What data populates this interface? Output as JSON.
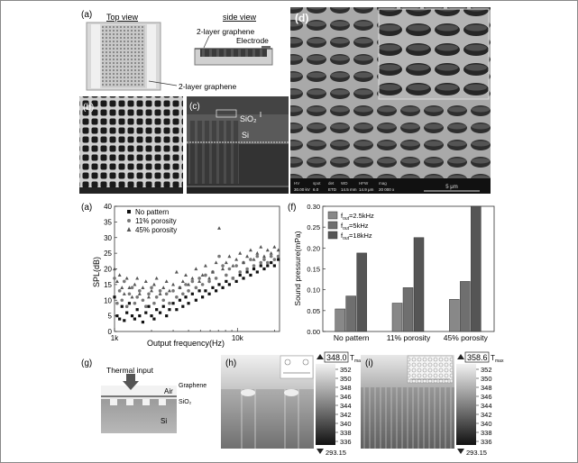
{
  "panel_labels": {
    "a_top": "(a)",
    "b": "(b)",
    "c": "(c)",
    "d": "(d)",
    "a_bottom": "(a)",
    "f": "(f)",
    "g": "(g)",
    "h": "(h)",
    "i": "(i)"
  },
  "panel_a_top": {
    "top_view_title": "Top view",
    "side_view_title": "side view",
    "label_graphene_side": "2-layer graphene",
    "label_electrode": "Electrode",
    "label_graphene_top": "2-layer graphene"
  },
  "panel_c": {
    "label_sio2": "SiO₂",
    "label_si": "Si"
  },
  "panel_d": {
    "footer_headers": [
      "HV",
      "spot",
      "det",
      "WD",
      "HFW",
      "mag"
    ],
    "footer_values": [
      "30.00 kV",
      "6.0",
      "ETD",
      "14.5 mm",
      "14.9 μm",
      "20 000 x"
    ],
    "scale_label": "5 μm"
  },
  "panel_g": {
    "label_input": "Thermal input",
    "label_graphene": "Graphene",
    "label_air": "Air",
    "label_sio2": "SiO₂",
    "label_si": "Si"
  },
  "panel_h": {
    "max_value": "348.0",
    "tmax_label": "T",
    "colorbar_ticks": [
      "352",
      "350",
      "348",
      "346",
      "344",
      "342",
      "340",
      "338",
      "336"
    ],
    "min_value": "293.15"
  },
  "panel_i": {
    "max_value": "358.6",
    "tmax_label": "T",
    "colorbar_ticks": [
      "352",
      "350",
      "348",
      "346",
      "344",
      "342",
      "340",
      "338",
      "336"
    ],
    "min_value": "293.15"
  },
  "chart_data": [
    {
      "type": "scatter",
      "title": "",
      "xlabel": "Output frequency(Hz)",
      "ylabel": "SPL(dB)",
      "xscale": "log",
      "xlim": [
        1000,
        22000
      ],
      "ylim": [
        0,
        40
      ],
      "yticks": [
        0,
        5,
        10,
        15,
        20,
        25,
        30,
        35,
        40
      ],
      "xtick_labels": [
        "1k",
        "10k"
      ],
      "legend_position": "top-left",
      "series": [
        {
          "name": "No pattern",
          "marker": "square",
          "points": [
            [
              1000,
              11
            ],
            [
              1050,
              5
            ],
            [
              1100,
              4
            ],
            [
              1150,
              8
            ],
            [
              1200,
              3.5
            ],
            [
              1260,
              6
            ],
            [
              1320,
              9
            ],
            [
              1390,
              5
            ],
            [
              1460,
              4
            ],
            [
              1530,
              7
            ],
            [
              1600,
              5
            ],
            [
              1700,
              3
            ],
            [
              1800,
              6
            ],
            [
              1900,
              8
            ],
            [
              2000,
              5
            ],
            [
              2100,
              4
            ],
            [
              2200,
              7
            ],
            [
              2350,
              6
            ],
            [
              2500,
              8
            ],
            [
              2650,
              5
            ],
            [
              2800,
              7
            ],
            [
              3000,
              9
            ],
            [
              3200,
              7
            ],
            [
              3400,
              10
            ],
            [
              3600,
              8
            ],
            [
              3800,
              11
            ],
            [
              4000,
              9
            ],
            [
              4300,
              12
            ],
            [
              4600,
              10
            ],
            [
              4900,
              13
            ],
            [
              5200,
              11
            ],
            [
              5500,
              13
            ],
            [
              5900,
              12
            ],
            [
              6300,
              14
            ],
            [
              6700,
              13
            ],
            [
              7100,
              15
            ],
            [
              7600,
              14
            ],
            [
              8100,
              16
            ],
            [
              8600,
              15
            ],
            [
              9200,
              17
            ],
            [
              9800,
              16
            ],
            [
              10500,
              18
            ],
            [
              11200,
              17
            ],
            [
              12000,
              19
            ],
            [
              12800,
              18
            ],
            [
              13600,
              20
            ],
            [
              14500,
              19
            ],
            [
              15500,
              21
            ],
            [
              16500,
              20
            ],
            [
              17600,
              21
            ],
            [
              18800,
              22
            ],
            [
              20000,
              21
            ],
            [
              21500,
              23
            ]
          ]
        },
        {
          "name": "11% porosity",
          "marker": "circle",
          "points": [
            [
              1000,
              17
            ],
            [
              1050,
              9
            ],
            [
              1100,
              13
            ],
            [
              1150,
              10
            ],
            [
              1200,
              16
            ],
            [
              1260,
              8
            ],
            [
              1320,
              12
            ],
            [
              1390,
              14
            ],
            [
              1460,
              9
            ],
            [
              1530,
              11
            ],
            [
              1600,
              13
            ],
            [
              1700,
              10
            ],
            [
              1800,
              8
            ],
            [
              1900,
              12
            ],
            [
              2000,
              14
            ],
            [
              2100,
              9
            ],
            [
              2200,
              11
            ],
            [
              2350,
              13
            ],
            [
              2500,
              10
            ],
            [
              2650,
              12
            ],
            [
              2800,
              9
            ],
            [
              3000,
              13
            ],
            [
              3200,
              11
            ],
            [
              3400,
              14
            ],
            [
              3600,
              12
            ],
            [
              3800,
              15
            ],
            [
              4000,
              13
            ],
            [
              4300,
              16
            ],
            [
              4600,
              14
            ],
            [
              4900,
              17
            ],
            [
              5200,
              15
            ],
            [
              5500,
              18
            ],
            [
              5900,
              16
            ],
            [
              6300,
              19
            ],
            [
              6700,
              17
            ],
            [
              7100,
              24
            ],
            [
              7600,
              21
            ],
            [
              8100,
              18
            ],
            [
              8600,
              20
            ],
            [
              9200,
              17
            ],
            [
              9800,
              21
            ],
            [
              10500,
              19
            ],
            [
              11200,
              22
            ],
            [
              12000,
              20
            ],
            [
              12800,
              23
            ],
            [
              13600,
              21
            ],
            [
              14500,
              24
            ],
            [
              15500,
              22
            ],
            [
              16500,
              23
            ],
            [
              17600,
              22
            ],
            [
              18800,
              24
            ],
            [
              20000,
              23
            ],
            [
              21500,
              24
            ]
          ]
        },
        {
          "name": "45% porosity",
          "marker": "triangle",
          "points": [
            [
              1000,
              20
            ],
            [
              1050,
              16
            ],
            [
              1100,
              18
            ],
            [
              1150,
              14
            ],
            [
              1200,
              12
            ],
            [
              1260,
              17
            ],
            [
              1320,
              14
            ],
            [
              1390,
              11
            ],
            [
              1460,
              15
            ],
            [
              1530,
              17
            ],
            [
              1600,
              12
            ],
            [
              1700,
              14
            ],
            [
              1800,
              16
            ],
            [
              1900,
              11
            ],
            [
              2000,
              13
            ],
            [
              2100,
              15
            ],
            [
              2200,
              17
            ],
            [
              2350,
              12
            ],
            [
              2500,
              14
            ],
            [
              2650,
              16
            ],
            [
              2800,
              13
            ],
            [
              3000,
              15
            ],
            [
              3200,
              19
            ],
            [
              3400,
              14
            ],
            [
              3600,
              16
            ],
            [
              3800,
              18
            ],
            [
              4000,
              15
            ],
            [
              4300,
              17
            ],
            [
              4600,
              20
            ],
            [
              4900,
              16
            ],
            [
              5200,
              18
            ],
            [
              5500,
              21
            ],
            [
              5900,
              17
            ],
            [
              6300,
              19
            ],
            [
              6700,
              22
            ],
            [
              7100,
              33
            ],
            [
              7600,
              20
            ],
            [
              8100,
              22
            ],
            [
              8600,
              24
            ],
            [
              9200,
              21
            ],
            [
              9800,
              23
            ],
            [
              10500,
              25
            ],
            [
              11200,
              22
            ],
            [
              12000,
              24
            ],
            [
              12800,
              26
            ],
            [
              13600,
              23
            ],
            [
              14500,
              25
            ],
            [
              15500,
              27
            ],
            [
              16500,
              24
            ],
            [
              17600,
              26
            ],
            [
              18800,
              25
            ],
            [
              20000,
              27
            ],
            [
              21500,
              26
            ]
          ]
        }
      ]
    },
    {
      "type": "bar",
      "title": "",
      "xlabel": "",
      "ylabel": "Sound pressure(mPa)",
      "ylim": [
        0,
        0.3
      ],
      "yticks": [
        0.0,
        0.05,
        0.1,
        0.15,
        0.2,
        0.25,
        0.3
      ],
      "ytick_labels": [
        "0.00",
        "0.05",
        "0.10",
        "0.15",
        "0.20",
        "0.25",
        "0.30"
      ],
      "legend_position": "top-left",
      "categories": [
        "No pattern",
        "11% porosity",
        "45% porosity"
      ],
      "series": [
        {
          "name": "f_out=2.5kHz",
          "label_main": "f",
          "label_sub": "out",
          "label_rest": "=2.5kHz",
          "color": "#888888",
          "values": [
            0.054,
            0.068,
            0.077
          ]
        },
        {
          "name": "f_out=5kHz",
          "label_main": "f",
          "label_sub": "out",
          "label_rest": "=5kHz",
          "color": "#6f6f6f",
          "values": [
            0.085,
            0.105,
            0.12
          ]
        },
        {
          "name": "f_out=18kHz",
          "label_main": "f",
          "label_sub": "out",
          "label_rest": "=18kHz",
          "color": "#555555",
          "values": [
            0.188,
            0.225,
            0.3
          ]
        }
      ]
    }
  ]
}
